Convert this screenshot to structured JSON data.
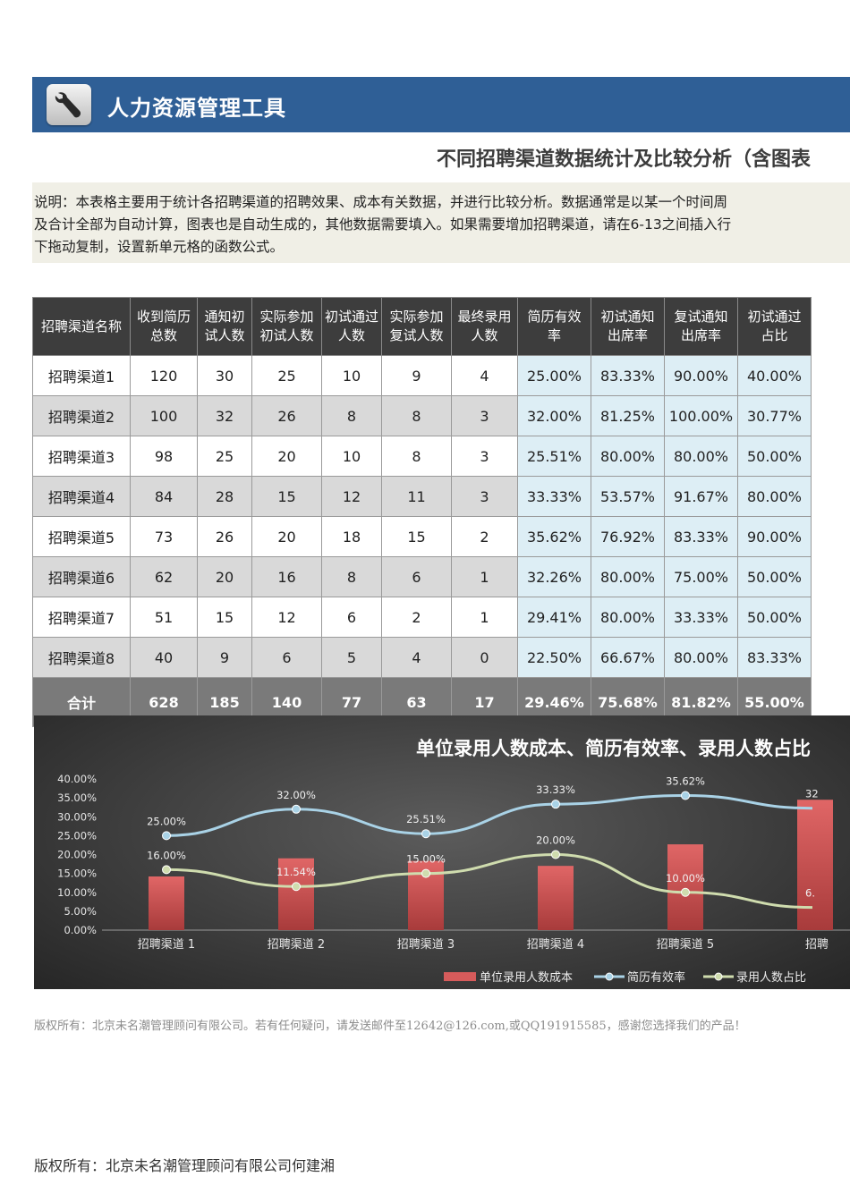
{
  "header": {
    "title": "人力资源管理工具",
    "logo_icon": "wrench-icon"
  },
  "subtitle": "不同招聘渠道数据统计及比较分析（含图表",
  "description": {
    "lines": [
      "说明：本表格主要用于统计各招聘渠道的招聘效果、成本有关数据，并进行比较分析。数据通常是以某一个时间周",
      "及合计全部为自动计算，图表也是自动生成的，其他数据需要填入。如果需要增加招聘渠道，请在6-13之间插入行",
      "下拖动复制，设置新单元格的函数公式。"
    ]
  },
  "table": {
    "headers": [
      "招聘渠道名称",
      "收到简历\n总数",
      "通知初\n试人数",
      "实际参加\n初试人数",
      "初试通过\n人数",
      "实际参加\n复试人数",
      "最终录用\n人数",
      "简历有效\n率",
      "初试通知\n出席率",
      "复试通知\n出席率",
      "初试通过\n占比"
    ],
    "rows": [
      [
        "招聘渠道1",
        "120",
        "30",
        "25",
        "10",
        "9",
        "4",
        "25.00%",
        "83.33%",
        "90.00%",
        "40.00%"
      ],
      [
        "招聘渠道2",
        "100",
        "32",
        "26",
        "8",
        "8",
        "3",
        "32.00%",
        "81.25%",
        "100.00%",
        "30.77%"
      ],
      [
        "招聘渠道3",
        "98",
        "25",
        "20",
        "10",
        "8",
        "3",
        "25.51%",
        "80.00%",
        "80.00%",
        "50.00%"
      ],
      [
        "招聘渠道4",
        "84",
        "28",
        "15",
        "12",
        "11",
        "3",
        "33.33%",
        "53.57%",
        "91.67%",
        "80.00%"
      ],
      [
        "招聘渠道5",
        "73",
        "26",
        "20",
        "18",
        "15",
        "2",
        "35.62%",
        "76.92%",
        "83.33%",
        "90.00%"
      ],
      [
        "招聘渠道6",
        "62",
        "20",
        "16",
        "8",
        "6",
        "1",
        "32.26%",
        "80.00%",
        "75.00%",
        "50.00%"
      ],
      [
        "招聘渠道7",
        "51",
        "15",
        "12",
        "6",
        "2",
        "1",
        "29.41%",
        "80.00%",
        "33.33%",
        "50.00%"
      ],
      [
        "招聘渠道8",
        "40",
        "9",
        "6",
        "5",
        "4",
        "0",
        "22.50%",
        "66.67%",
        "80.00%",
        "83.33%"
      ]
    ],
    "total": [
      "合计",
      "628",
      "185",
      "140",
      "77",
      "63",
      "17",
      "29.46%",
      "75.68%",
      "81.82%",
      "55.00%"
    ]
  },
  "chart_data": {
    "type": "bar",
    "title": "单位录用人数成本、简历有效率、录用人数占比",
    "categories": [
      "招聘渠道 1",
      "招聘渠道 2",
      "招聘渠道 3",
      "招聘渠道 4",
      "招聘渠道 5",
      "招聘"
    ],
    "yticks": [
      "40.00%",
      "35.00%",
      "30.00%",
      "25.00%",
      "20.00%",
      "15.00%",
      "10.00%",
      "5.00%",
      "0.00%"
    ],
    "ylim": [
      0,
      40
    ],
    "series": [
      {
        "name": "单位录用人数成本",
        "kind": "bar",
        "color": "#d65b5b",
        "values": [
          14.2,
          19.0,
          18.3,
          17.0,
          22.7,
          34.5
        ]
      },
      {
        "name": "简历有效率",
        "kind": "line",
        "color": "#a9d2e6",
        "values": [
          25.0,
          32.0,
          25.51,
          33.33,
          35.62,
          32.26
        ],
        "labels": [
          "25.00%",
          "32.00%",
          "25.51%",
          "33.33%",
          "35.62%",
          "32"
        ]
      },
      {
        "name": "录用人数占比",
        "kind": "line",
        "color": "#cfdcae",
        "values": [
          16.0,
          11.54,
          15.0,
          20.0,
          10.0,
          6.0
        ],
        "labels": [
          "16.00%",
          "11.54%",
          "15.00%",
          "20.00%",
          "10.00%",
          "6."
        ]
      }
    ],
    "legend": [
      "单位录用人数成本",
      "简历有效率",
      "录用人数占比"
    ],
    "legend_position": "bottom-right",
    "background": "#3b3b3b"
  },
  "footer": {
    "copyright": "版权所有：北京未名潮管理顾问有限公司。若有任何疑问，请发送邮件至12642@126.com,或QQ191915585，感谢您选择我们的产品！",
    "bottom": "版权所有：北京未名潮管理顾问有限公司何建湘"
  }
}
